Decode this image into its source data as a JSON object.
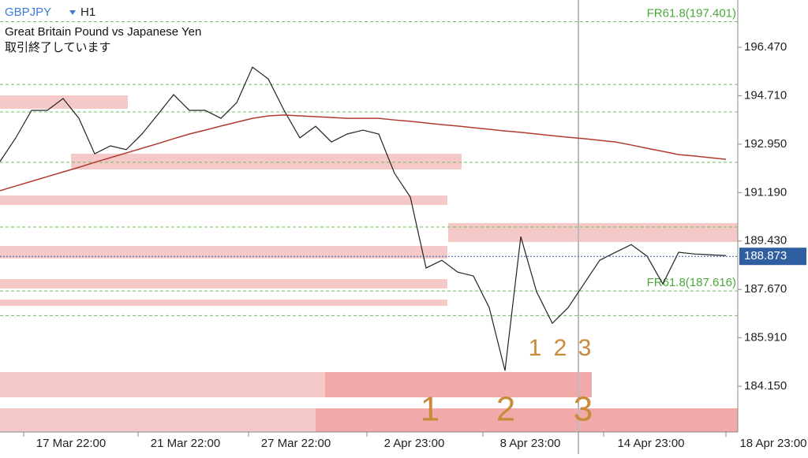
{
  "header": {
    "symbol": "GBPJPY",
    "timeframe": "H1",
    "description": "Great Britain Pound vs Japanese Yen",
    "status": "取引終了しています"
  },
  "chart_data": {
    "type": "line",
    "x": [
      0,
      1,
      2,
      3,
      4,
      5,
      6,
      7,
      8,
      9,
      10,
      11,
      12,
      13,
      14,
      15,
      16,
      17,
      18,
      19,
      20,
      21,
      22,
      23,
      24,
      25,
      26,
      27,
      28,
      29,
      30,
      31,
      32,
      33,
      34,
      35,
      36,
      37,
      38,
      39,
      40,
      41,
      42,
      43,
      44,
      45,
      46
    ],
    "series": [
      {
        "color": "#222222",
        "values": [
          192.32,
          193.18,
          194.18,
          194.18,
          194.61,
          193.89,
          192.6,
          192.89,
          192.75,
          193.32,
          194.03,
          194.75,
          194.18,
          194.18,
          193.89,
          194.46,
          195.75,
          195.32,
          194.18,
          193.18,
          193.6,
          193.03,
          193.32,
          193.46,
          193.32,
          191.89,
          191.03,
          188.45,
          188.73,
          188.3,
          188.16,
          187.01,
          184.72,
          189.59,
          187.59,
          186.44,
          187.01,
          187.87,
          188.73,
          189.02,
          189.3,
          188.88,
          187.87,
          189.02,
          188.96,
          188.93,
          188.9
        ]
      },
      {
        "color": "#b03a2e",
        "values": [
          191.26,
          191.43,
          191.6,
          191.77,
          191.94,
          192.11,
          192.29,
          192.46,
          192.63,
          192.8,
          192.97,
          193.15,
          193.32,
          193.46,
          193.61,
          193.75,
          193.89,
          193.98,
          194.01,
          193.98,
          193.95,
          193.92,
          193.89,
          193.89,
          193.89,
          193.83,
          193.78,
          193.72,
          193.66,
          193.61,
          193.55,
          193.49,
          193.43,
          193.38,
          193.32,
          193.26,
          193.2,
          193.15,
          193.09,
          193.03,
          192.92,
          192.8,
          192.69,
          192.57,
          192.52,
          192.46,
          192.4
        ]
      }
    ],
    "xlim": [
      0,
      46.75
    ],
    "xticks": [
      {
        "value": 4.5,
        "label": "17 Mar 22:00"
      },
      {
        "value": 11.75,
        "label": "21 Mar 22:00"
      },
      {
        "value": 18.75,
        "label": "27 Mar 22:00"
      },
      {
        "value": 26.25,
        "label": "2 Apr 23:00"
      },
      {
        "value": 33.6,
        "label": "8 Apr 23:00"
      },
      {
        "value": 41.25,
        "label": "14 Apr 23:00"
      },
      {
        "value": 49,
        "label": "18 Apr 23:00"
      }
    ],
    "ylim": [
      182.49,
      198.19
    ],
    "yticks": [
      {
        "value": 196.47,
        "label": "196.470"
      },
      {
        "value": 194.71,
        "label": "194.710"
      },
      {
        "value": 192.95,
        "label": "192.950"
      },
      {
        "value": 191.19,
        "label": "191.190"
      },
      {
        "value": 189.43,
        "label": "189.430"
      },
      {
        "value": 187.67,
        "label": "187.670"
      },
      {
        "value": 185.91,
        "label": "185.910"
      },
      {
        "value": 184.15,
        "label": "184.150"
      }
    ],
    "current_price": 188.873,
    "fib_levels": [
      {
        "value": 197.401,
        "label": "FR61.8(197.401)"
      },
      {
        "value": 187.616,
        "label": "FR61.8(187.616)"
      }
    ],
    "fib_lines": [
      195.12,
      194.12,
      192.29,
      189.94,
      186.72
    ],
    "annotations_small": [
      "1",
      "2",
      "3"
    ],
    "annotations_large": [
      "1",
      "2",
      "3"
    ]
  }
}
